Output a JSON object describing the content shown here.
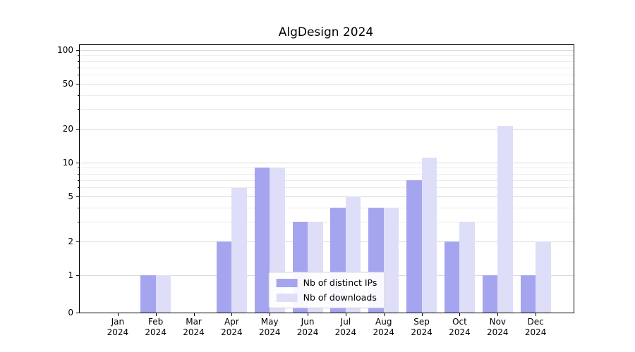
{
  "figure": {
    "background": "#ffffff"
  },
  "chart_data": {
    "type": "bar",
    "title": "AlgDesign 2024",
    "categories": [
      "Jan",
      "Feb",
      "Mar",
      "Apr",
      "May",
      "Jun",
      "Jul",
      "Aug",
      "Sep",
      "Oct",
      "Nov",
      "Dec"
    ],
    "year_label": "2024",
    "series": [
      {
        "name": "Nb of distinct IPs",
        "color": "#a5a5ef",
        "values": [
          0,
          1,
          0,
          2,
          9,
          3,
          4,
          4,
          7,
          2,
          1,
          1
        ]
      },
      {
        "name": "Nb of downloads",
        "color": "#dedef9",
        "values": [
          0,
          1,
          0,
          6,
          9,
          3,
          5,
          4,
          11,
          3,
          21,
          2
        ]
      }
    ],
    "xlabel": "",
    "ylabel": "",
    "yscale": "symlog",
    "ylim": [
      0,
      110
    ],
    "y_major_ticks": [
      0,
      1,
      2,
      5,
      10,
      20,
      50,
      100
    ],
    "y_minor_ticks": [
      3,
      4,
      6,
      7,
      8,
      9,
      30,
      40,
      60,
      70,
      80,
      90
    ],
    "grid": true,
    "legend_position": "lower center",
    "grid_major_color": "#d9d9d9",
    "grid_minor_color": "#ececec"
  }
}
